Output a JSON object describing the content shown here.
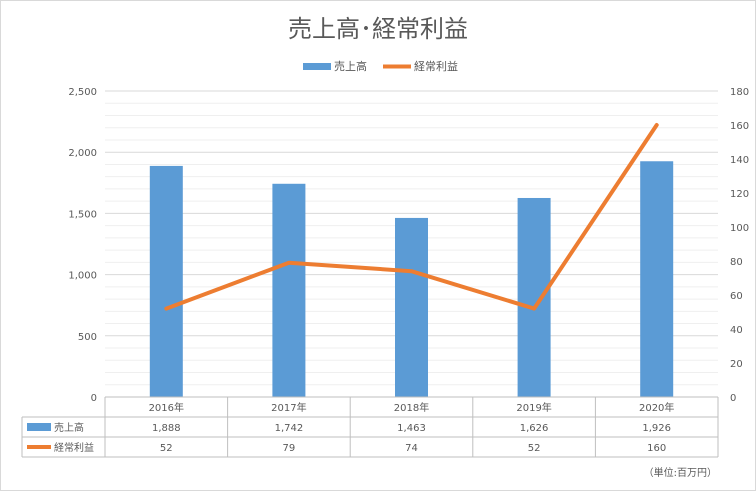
{
  "chart_data": {
    "type": "bar",
    "title": "売上高･経常利益",
    "categories": [
      "2016年",
      "2017年",
      "2018年",
      "2019年",
      "2020年"
    ],
    "series": [
      {
        "name": "売上高",
        "type": "bar",
        "axis": "left",
        "color": "#5b9bd5",
        "values": [
          1888,
          1742,
          1463,
          1626,
          1926
        ],
        "labels": [
          "1,888",
          "1,742",
          "1,463",
          "1,626",
          "1,926"
        ]
      },
      {
        "name": "経常利益",
        "type": "line",
        "axis": "right",
        "color": "#ed7d31",
        "values": [
          52,
          79,
          74,
          52,
          160
        ],
        "labels": [
          "52",
          "79",
          "74",
          "52",
          "160"
        ]
      }
    ],
    "y_left": {
      "ylim": [
        0,
        2500
      ],
      "ticks": [
        "0",
        "500",
        "1,000",
        "1,500",
        "2,000",
        "2,500"
      ]
    },
    "y_right": {
      "ylim": [
        0,
        180
      ],
      "ticks": [
        "0",
        "20",
        "40",
        "60",
        "80",
        "100",
        "120",
        "140",
        "160",
        "180"
      ]
    },
    "legend": "top-center",
    "grid": true,
    "data_table": true,
    "unit_note": "（単位:百万円）"
  }
}
